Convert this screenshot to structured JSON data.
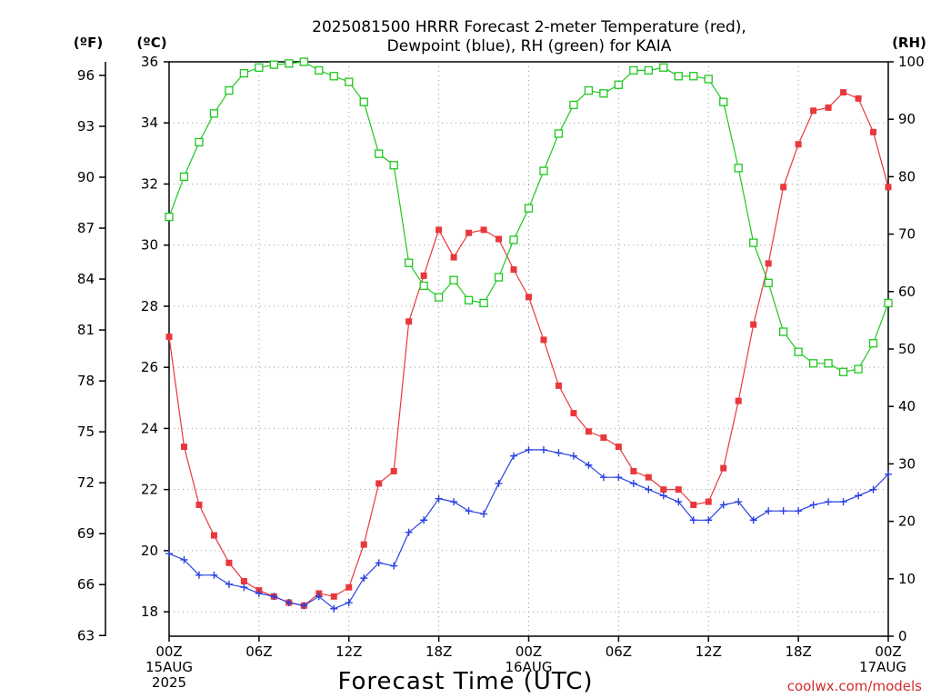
{
  "title_line1": "2025081500 HRRR Forecast 2-meter Temperature (red),",
  "title_line2": "Dewpoint (blue), RH (green) for KAIA",
  "unit_left_f": "(ºF)",
  "unit_left_c": "(ºC)",
  "unit_right": "(RH)",
  "xlabel": "Forecast Time (UTC)",
  "credit": "coolwx.com/models",
  "colors": {
    "temperature": "#e8383c",
    "dewpoint": "#2a40e0",
    "rh": "#1ec81e",
    "credit": "#d32b2b"
  },
  "chart_data": {
    "type": "line",
    "x": {
      "start": "2025-08-15 00Z",
      "end": "2025-08-17 00Z",
      "step_hours": 1
    },
    "x_ticks": [
      {
        "hour": 0,
        "label": "00Z",
        "sub1": "15AUG",
        "sub2": "2025"
      },
      {
        "hour": 6,
        "label": "06Z"
      },
      {
        "hour": 12,
        "label": "12Z"
      },
      {
        "hour": 18,
        "label": "18Z"
      },
      {
        "hour": 24,
        "label": "00Z",
        "sub1": "16AUG"
      },
      {
        "hour": 30,
        "label": "06Z"
      },
      {
        "hour": 36,
        "label": "12Z"
      },
      {
        "hour": 42,
        "label": "18Z"
      },
      {
        "hour": 48,
        "label": "00Z",
        "sub1": "17AUG"
      }
    ],
    "y_celsius": {
      "ylim": [
        17.2,
        36
      ],
      "ticks": [
        18,
        20,
        22,
        24,
        26,
        28,
        30,
        32,
        34,
        36
      ]
    },
    "y_fahrenheit": {
      "ticks": [
        63,
        66,
        69,
        72,
        75,
        78,
        81,
        84,
        87,
        90,
        93,
        96
      ]
    },
    "y_rh": {
      "ylim": [
        0,
        100
      ],
      "ticks": [
        0,
        10,
        20,
        30,
        40,
        50,
        60,
        70,
        80,
        90,
        100
      ]
    },
    "grid": true,
    "series": [
      {
        "name": "Temperature",
        "axis": "celsius",
        "marker": "filled-square",
        "values": [
          27.0,
          23.4,
          21.5,
          20.5,
          19.6,
          19.0,
          18.7,
          18.5,
          18.3,
          18.2,
          18.6,
          18.5,
          18.8,
          20.2,
          22.2,
          22.6,
          27.5,
          29.0,
          30.5,
          29.6,
          30.4,
          30.5,
          30.2,
          29.2,
          28.3,
          26.9,
          25.4,
          24.5,
          23.9,
          23.7,
          23.4,
          22.6,
          22.4,
          22.0,
          22.0,
          21.5,
          21.6,
          22.7,
          24.9,
          27.4,
          29.4,
          31.9,
          33.3,
          34.4,
          34.5,
          35.0,
          34.8,
          33.7,
          31.9
        ]
      },
      {
        "name": "Dewpoint",
        "axis": "celsius",
        "marker": "plus",
        "values": [
          19.9,
          19.7,
          19.2,
          19.2,
          18.9,
          18.8,
          18.6,
          18.5,
          18.3,
          18.2,
          18.5,
          18.1,
          18.3,
          19.1,
          19.6,
          19.5,
          20.6,
          21.0,
          21.7,
          21.6,
          21.3,
          21.2,
          22.2,
          23.1,
          23.3,
          23.3,
          23.2,
          23.1,
          22.8,
          22.4,
          22.4,
          22.2,
          22.0,
          21.8,
          21.6,
          21.0,
          21.0,
          21.5,
          21.6,
          21.0,
          21.3,
          21.3,
          21.3,
          21.5,
          21.6,
          21.6,
          21.8,
          22.0,
          22.5
        ]
      },
      {
        "name": "RH",
        "axis": "rh",
        "marker": "open-square",
        "values": [
          73,
          80,
          86,
          91,
          95,
          98,
          99,
          99.5,
          99.7,
          100,
          98.5,
          97.5,
          96.5,
          93,
          84,
          82,
          65,
          61,
          59,
          62,
          58.5,
          58,
          62.5,
          69,
          74.5,
          81,
          87.5,
          92.5,
          95,
          94.5,
          96,
          98.5,
          98.5,
          99,
          97.5,
          97.5,
          97,
          93,
          81.5,
          68.5,
          61.5,
          53,
          49.5,
          47.5,
          47.5,
          46,
          46.5,
          51,
          58
        ]
      }
    ]
  }
}
